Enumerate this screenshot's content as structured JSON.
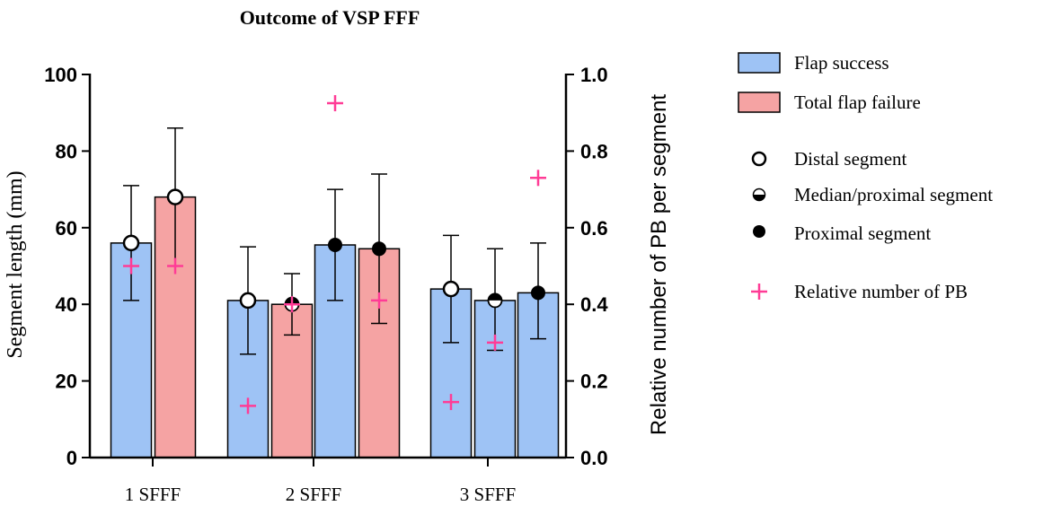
{
  "chart_data": {
    "type": "bar",
    "title": "Outcome of VSP FFF",
    "ylabel": "Segment length (mm)",
    "y2label": "Relative number of PB per segment",
    "ylim": [
      0,
      100
    ],
    "y2lim": [
      0.0,
      1.0
    ],
    "yticks": [
      "0",
      "20",
      "40",
      "60",
      "80",
      "100"
    ],
    "y2ticks": [
      "0.0",
      "0.2",
      "0.4",
      "0.6",
      "0.8",
      "1.0"
    ],
    "groups": [
      "1 SFFF",
      "2 SFFF",
      "3 SFFF"
    ],
    "colors": {
      "flap_success": "#9ec3f5",
      "total_flap_failure": "#f5a3a3",
      "pb_marker": "#ff3c96",
      "axis": "#000000"
    },
    "bars": [
      {
        "group": "1 SFFF",
        "outcome": "Flap success",
        "segment": "Distal segment",
        "value": 56,
        "err_low": 41,
        "err_high": 71,
        "pb": 0.5
      },
      {
        "group": "1 SFFF",
        "outcome": "Total flap failure",
        "segment": "Distal segment",
        "value": 68,
        "err_low": 50,
        "err_high": 86,
        "pb": 0.5
      },
      {
        "group": "2 SFFF",
        "outcome": "Flap success",
        "segment": "Distal segment",
        "value": 41,
        "err_low": 27,
        "err_high": 55,
        "pb": 0.135
      },
      {
        "group": "2 SFFF",
        "outcome": "Total flap failure",
        "segment": "Median/proximal segment",
        "value": 40,
        "err_low": 32,
        "err_high": 48,
        "pb": 0.4
      },
      {
        "group": "2 SFFF",
        "outcome": "Flap success",
        "segment": "Proximal segment",
        "value": 55.5,
        "err_low": 41,
        "err_high": 70,
        "pb": 0.925
      },
      {
        "group": "2 SFFF",
        "outcome": "Total flap failure",
        "segment": "Proximal segment",
        "value": 54.5,
        "err_low": 35,
        "err_high": 74,
        "pb": 0.41
      },
      {
        "group": "3 SFFF",
        "outcome": "Flap success",
        "segment": "Distal segment",
        "value": 44,
        "err_low": 30,
        "err_high": 58,
        "pb": 0.145
      },
      {
        "group": "3 SFFF",
        "outcome": "Flap success",
        "segment": "Median/proximal segment",
        "value": 41,
        "err_low": 28,
        "err_high": 54.5,
        "pb": 0.3
      },
      {
        "group": "3 SFFF",
        "outcome": "Flap success",
        "segment": "Proximal segment",
        "value": 43,
        "err_low": 31,
        "err_high": 56,
        "pb": 0.73
      }
    ],
    "legend": {
      "placement": "right",
      "flap_success": "Flap success",
      "total_flap_failure": "Total flap failure",
      "distal": "Distal segment",
      "median_proximal": "Median/proximal segment",
      "proximal": "Proximal segment",
      "relative_pb": "Relative number of PB"
    }
  }
}
